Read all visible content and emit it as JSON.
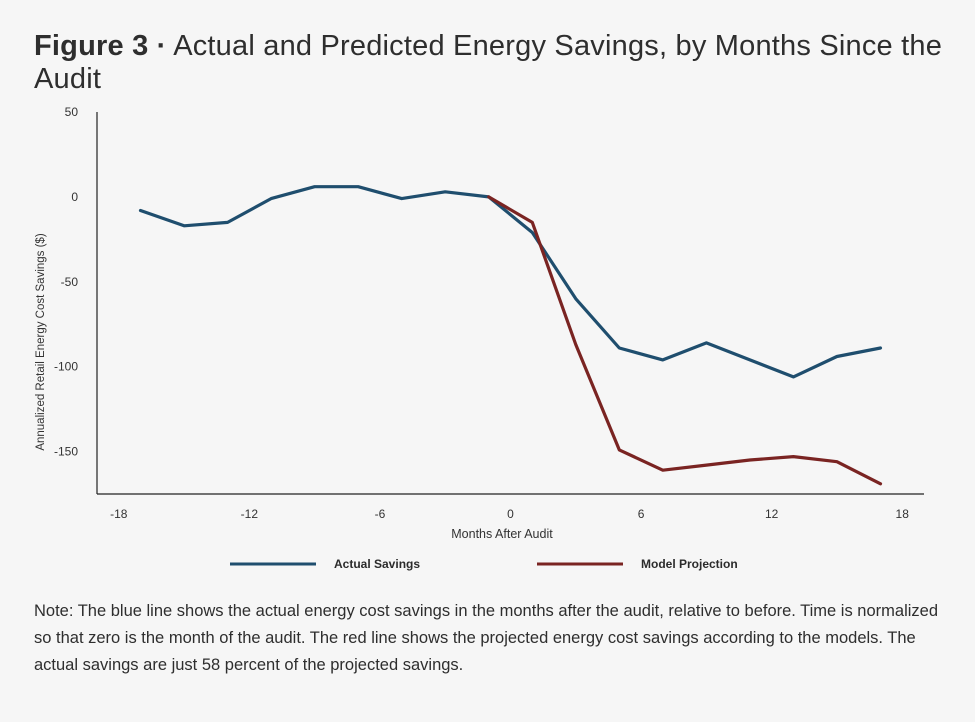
{
  "figure": {
    "label": "Figure 3 ·",
    "title": "Actual and Predicted Energy Savings, by Months Since the Audit"
  },
  "chart_data": {
    "type": "line",
    "xlabel": "Months After Audit",
    "ylabel": "Annualized Retail Energy Cost Savings ($)",
    "xlim": [
      -19,
      19
    ],
    "ylim": [
      -175,
      50
    ],
    "x_ticks": [
      -18,
      -12,
      -6,
      0,
      6,
      12,
      18
    ],
    "y_ticks": [
      50,
      0,
      -50,
      -100,
      -150
    ],
    "legend_position": "bottom",
    "grid": false,
    "series": [
      {
        "name": "Actual Savings",
        "color": "#1f4e6e",
        "x": [
          -17,
          -15,
          -13,
          -11,
          -9,
          -7,
          -5,
          -3,
          -1,
          1,
          3,
          5,
          7,
          9,
          11,
          13,
          15,
          17
        ],
        "y": [
          -8,
          -17,
          -15,
          -1,
          6,
          6,
          -1,
          3,
          0,
          -21,
          -60,
          -89,
          -96,
          -86,
          -96,
          -106,
          -94,
          -89
        ]
      },
      {
        "name": "Model Projection",
        "color": "#7a2422",
        "x": [
          -1,
          1,
          3,
          5,
          7,
          9,
          11,
          13,
          15,
          17
        ],
        "y": [
          0,
          -15,
          -87,
          -149,
          -161,
          -158,
          -155,
          -153,
          -156,
          -169
        ]
      }
    ]
  },
  "note": "Note: The blue line shows the actual energy cost savings in the months after the audit, relative to before. Time is normalized so that zero is the month of the audit. The red line shows the projected energy cost savings according to the models. The actual savings are just 58 percent of the projected savings."
}
